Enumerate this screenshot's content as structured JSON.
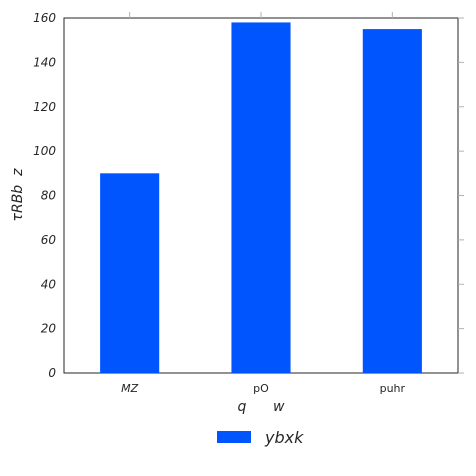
{
  "chart_data": {
    "type": "bar",
    "categories": [
      "MZ",
      "pO",
      "puhr"
    ],
    "series": [
      {
        "name": "ybxk",
        "values": [
          90,
          158,
          155
        ],
        "color": "#0055ff"
      }
    ],
    "xlabel": "q      w",
    "ylabel": "τRBb  z",
    "ylim": [
      0,
      160
    ],
    "yticks": [
      0,
      20,
      40,
      60,
      80,
      100,
      120,
      140,
      160
    ],
    "grid": false,
    "legend_position": "bottom-center"
  }
}
